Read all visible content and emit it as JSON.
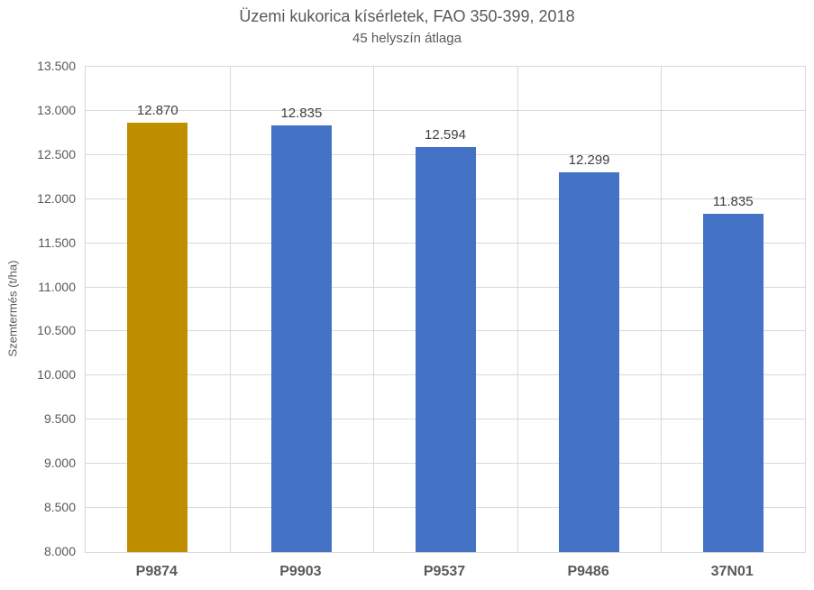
{
  "chart_data": {
    "type": "bar",
    "title": "Üzemi kukorica kísérletek, FAO 350-399, 2018",
    "subtitle": "45 helyszín átlaga",
    "xlabel": "",
    "ylabel": "Szemtermés (t/ha)",
    "categories": [
      "P9874",
      "P9903",
      "P9537",
      "P9486",
      "37N01"
    ],
    "values": [
      12.87,
      12.835,
      12.594,
      12.299,
      11.835
    ],
    "value_labels": [
      "12.870",
      "12.835",
      "12.594",
      "12.299",
      "11.835"
    ],
    "ylim": [
      8.0,
      13.5
    ],
    "ytick_step": 0.5,
    "ytick_values": [
      8.0,
      8.5,
      9.0,
      9.5,
      10.0,
      10.5,
      11.0,
      11.5,
      12.0,
      12.5,
      13.0,
      13.5
    ],
    "ytick_labels": [
      "8.000",
      "8.500",
      "9.000",
      "9.500",
      "10.000",
      "10.500",
      "11.000",
      "11.500",
      "12.000",
      "12.500",
      "13.000",
      "13.500"
    ],
    "grid": true,
    "legend": "none",
    "bar_colors": [
      "#BF8F00",
      "#4472C4",
      "#4472C4",
      "#4472C4",
      "#4472C4"
    ],
    "colors": {
      "highlight_bar": "#BF8F00",
      "default_bar": "#4472C4",
      "gridline": "#D9D9D9",
      "axis_text": "#595959",
      "title_text": "#595959",
      "data_label_text": "#404040",
      "background": "#FFFFFF"
    }
  }
}
